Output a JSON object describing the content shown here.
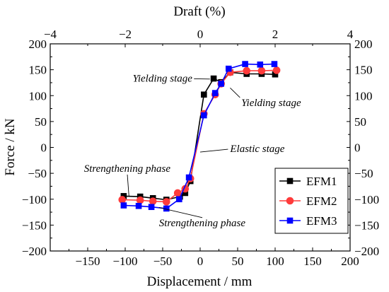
{
  "chart_data": {
    "type": "line",
    "xlabel": "Displacement / mm",
    "ylabel": "Force / kN",
    "x2label": "Draft (%)",
    "xlim": [
      -200,
      200
    ],
    "ylim": [
      -200,
      200
    ],
    "x2lim": [
      -4,
      4
    ],
    "xticks": [
      -150,
      -100,
      -50,
      0,
      50,
      100,
      150,
      200
    ],
    "yticks": [
      -200,
      -150,
      -100,
      -50,
      0,
      50,
      100,
      150,
      200
    ],
    "x2ticks": [
      -4,
      -2,
      0,
      2,
      4
    ],
    "grid": false,
    "legend_position": "bottom-right",
    "series": [
      {
        "name": "EFM1",
        "color": "#000000",
        "marker": "square",
        "points": [
          [
            -102,
            -94
          ],
          [
            -80,
            -95
          ],
          [
            -63,
            -98
          ],
          [
            -45,
            -101
          ],
          [
            -27,
            -95
          ],
          [
            -20,
            -88
          ],
          [
            -13,
            -65
          ],
          [
            5,
            102
          ],
          [
            18,
            133
          ],
          [
            28,
            126
          ],
          [
            40,
            145
          ],
          [
            62,
            142
          ],
          [
            82,
            142
          ],
          [
            100,
            141
          ]
        ]
      },
      {
        "name": "EFM2",
        "color": "#ff3b3b",
        "marker": "circle",
        "points": [
          [
            -104,
            -101
          ],
          [
            -80,
            -102
          ],
          [
            -63,
            -104
          ],
          [
            -45,
            -105
          ],
          [
            -30,
            -88
          ],
          [
            -20,
            -80
          ],
          [
            -13,
            -60
          ],
          [
            5,
            65
          ],
          [
            20,
            102
          ],
          [
            28,
            123
          ],
          [
            40,
            145
          ],
          [
            62,
            148
          ],
          [
            82,
            148
          ],
          [
            102,
            149
          ]
        ]
      },
      {
        "name": "EFM3",
        "color": "#0000ff",
        "marker": "square",
        "points": [
          [
            -102,
            -112
          ],
          [
            -82,
            -113
          ],
          [
            -65,
            -115
          ],
          [
            -45,
            -118
          ],
          [
            -28,
            -100
          ],
          [
            -15,
            -58
          ],
          [
            5,
            62
          ],
          [
            20,
            105
          ],
          [
            28,
            123
          ],
          [
            38,
            152
          ],
          [
            60,
            161
          ],
          [
            80,
            160
          ],
          [
            99,
            161
          ]
        ]
      }
    ],
    "annotations": [
      {
        "text": "Yielding stage",
        "x": -90,
        "y": 127,
        "arrow_to": [
          13,
          132
        ]
      },
      {
        "text": "Yielding stage",
        "x": 55,
        "y": 80,
        "arrow_to": [
          40,
          115
        ]
      },
      {
        "text": "Elastic stage",
        "x": 40,
        "y": -9,
        "arrow_to": [
          0,
          -9
        ]
      },
      {
        "text": "Strengthening phase",
        "x": -155,
        "y": -47,
        "arrow_to": [
          -95,
          -94
        ]
      },
      {
        "text": "Strengthening phase",
        "x": -55,
        "y": -152,
        "arrow_to": [
          -55,
          -116
        ]
      }
    ]
  }
}
